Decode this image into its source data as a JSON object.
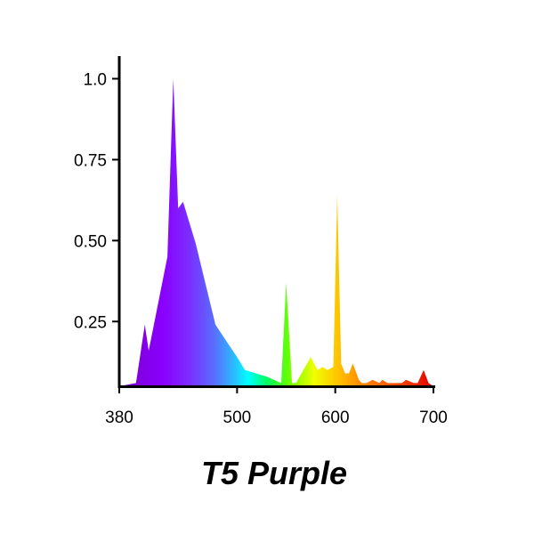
{
  "chart_data": {
    "type": "area",
    "title": "T5 Purple",
    "xlabel": "",
    "ylabel": "",
    "xlim": [
      380,
      700
    ],
    "ylim": [
      0.05,
      1.07
    ],
    "x_ticks": [
      380,
      500,
      600,
      700
    ],
    "x_tick_labels": [
      "380",
      "500",
      "600",
      "700"
    ],
    "y_ticks": [
      0.25,
      0.5,
      0.75,
      1.0
    ],
    "y_tick_labels": [
      "0.25",
      "0.50",
      "0.75",
      "1.0"
    ],
    "grid": false,
    "legend": "none",
    "fill": "visible-spectrum gradient (violet to red)",
    "series": [
      {
        "x": [
          380,
          397,
          406,
          410,
          429,
          435,
          440,
          445,
          458,
          478,
          500,
          508,
          530,
          545,
          550,
          556,
          560,
          575,
          582,
          587,
          592,
          598,
          602,
          606,
          610,
          614,
          618,
          624,
          627,
          632,
          638,
          645,
          648,
          653,
          660,
          668,
          672,
          680,
          684,
          690,
          695,
          700
        ],
        "y": [
          0.05,
          0.06,
          0.24,
          0.16,
          0.45,
          1.0,
          0.6,
          0.62,
          0.49,
          0.24,
          0.14,
          0.1,
          0.08,
          0.06,
          0.37,
          0.06,
          0.06,
          0.14,
          0.1,
          0.11,
          0.1,
          0.11,
          0.64,
          0.12,
          0.09,
          0.09,
          0.12,
          0.07,
          0.06,
          0.06,
          0.07,
          0.06,
          0.07,
          0.06,
          0.06,
          0.06,
          0.07,
          0.06,
          0.06,
          0.1,
          0.06,
          0.05
        ]
      }
    ]
  }
}
